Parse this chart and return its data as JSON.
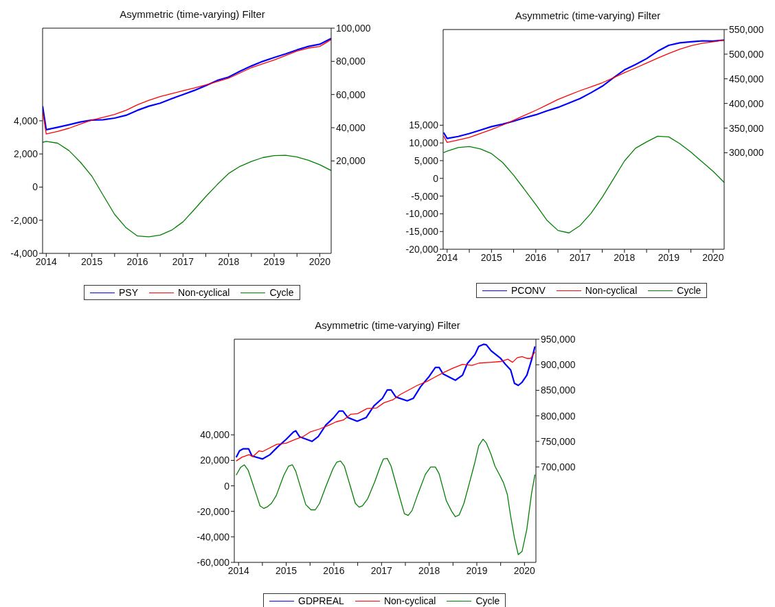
{
  "chart_data": [
    {
      "type": "line",
      "title": "Asymmetric (time-varying) Filter",
      "legend": "bottom",
      "xlim": [
        2014.42,
        2020.75
      ],
      "xticks": [
        {
          "value": 2014.5,
          "label": "2014"
        },
        {
          "value": 2015,
          "label": null
        },
        {
          "value": 2015.5,
          "label": "2015"
        },
        {
          "value": 2016,
          "label": null
        },
        {
          "value": 2016.5,
          "label": "2016"
        },
        {
          "value": 2017,
          "label": null
        },
        {
          "value": 2017.5,
          "label": "2017"
        },
        {
          "value": 2018,
          "label": null
        },
        {
          "value": 2018.5,
          "label": "2018"
        },
        {
          "value": 2019,
          "label": null
        },
        {
          "value": 2019.5,
          "label": "2019"
        },
        {
          "value": 2020,
          "label": null
        },
        {
          "value": 2020.5,
          "label": "2020"
        }
      ],
      "ylim": [
        -4000,
        9590
      ],
      "yticks": [
        {
          "value": -4000,
          "label": "-4,000"
        },
        {
          "value": -2000,
          "label": "-2,000"
        },
        {
          "value": 0,
          "label": "0"
        },
        {
          "value": 2000,
          "label": "2,000"
        },
        {
          "value": 4000,
          "label": "4,000"
        }
      ],
      "y2lim": [
        -35700,
        100000
      ],
      "y2ticks": [
        {
          "value": 20000,
          "label": "20,000"
        },
        {
          "value": 40000,
          "label": "40,000"
        },
        {
          "value": 60000,
          "label": "60,000"
        },
        {
          "value": 80000,
          "label": "80,000"
        },
        {
          "value": 100000,
          "label": "100,000"
        }
      ],
      "series": [
        {
          "name": "PSY",
          "color": "#0000ff",
          "axis": "y2",
          "x": [
            2014.42,
            2014.5,
            2014.75,
            2015,
            2015.25,
            2015.5,
            2015.75,
            2016,
            2016.25,
            2016.5,
            2016.75,
            2017,
            2017.25,
            2017.5,
            2017.75,
            2018,
            2018.25,
            2018.5,
            2018.75,
            2019,
            2019.25,
            2019.5,
            2019.75,
            2020,
            2020.25,
            2020.5,
            2020.75
          ],
          "values": [
            53000,
            38800,
            40300,
            41800,
            43500,
            44600,
            44800,
            45800,
            47500,
            50500,
            53000,
            54800,
            57500,
            60000,
            62500,
            65400,
            68500,
            70500,
            74000,
            77200,
            80000,
            82300,
            84500,
            86900,
            89000,
            90300,
            93800
          ]
        },
        {
          "name": "Non-cyclical",
          "color": "#ff0000",
          "axis": "y2",
          "x": [
            2014.42,
            2014.5,
            2014.75,
            2015,
            2015.25,
            2015.5,
            2015.75,
            2016,
            2016.25,
            2016.5,
            2016.75,
            2017,
            2017.25,
            2017.5,
            2017.75,
            2018,
            2018.25,
            2018.5,
            2018.75,
            2019,
            2019.25,
            2019.5,
            2019.75,
            2020,
            2020.25,
            2020.5,
            2020.75
          ],
          "values": [
            50000,
            36200,
            37800,
            39700,
            42200,
            44600,
            46300,
            48000,
            50500,
            53800,
            56500,
            58800,
            60500,
            62300,
            64000,
            65800,
            67800,
            69800,
            73000,
            76200,
            78500,
            80800,
            83500,
            86200,
            88000,
            89000,
            93100
          ]
        },
        {
          "name": "Cycle",
          "color": "#008000",
          "axis": "y",
          "x": [
            2014.42,
            2014.5,
            2014.75,
            2015,
            2015.25,
            2015.5,
            2015.75,
            2016,
            2016.25,
            2016.5,
            2016.75,
            2017,
            2017.25,
            2017.5,
            2017.75,
            2018,
            2018.25,
            2018.5,
            2018.75,
            2019,
            2019.25,
            2019.5,
            2019.75,
            2020,
            2020.25,
            2020.5,
            2020.75
          ],
          "values": [
            2700,
            2760,
            2650,
            2200,
            1500,
            660,
            -500,
            -1650,
            -2450,
            -2950,
            -3000,
            -2900,
            -2600,
            -2100,
            -1350,
            -570,
            150,
            820,
            1250,
            1550,
            1780,
            1900,
            1920,
            1820,
            1620,
            1350,
            1000
          ]
        }
      ]
    },
    {
      "type": "line",
      "title": "Asymmetric (time-varying) Filter",
      "legend": "bottom",
      "xlim": [
        2014.41,
        2020.75
      ],
      "xticks": [
        {
          "value": 2014.5,
          "label": "2014"
        },
        {
          "value": 2015,
          "label": null
        },
        {
          "value": 2015.5,
          "label": "2015"
        },
        {
          "value": 2016,
          "label": null
        },
        {
          "value": 2016.5,
          "label": "2016"
        },
        {
          "value": 2017,
          "label": null
        },
        {
          "value": 2017.5,
          "label": "2017"
        },
        {
          "value": 2018,
          "label": null
        },
        {
          "value": 2018.5,
          "label": "2018"
        },
        {
          "value": 2019,
          "label": null
        },
        {
          "value": 2019.5,
          "label": "2019"
        },
        {
          "value": 2020,
          "label": null
        },
        {
          "value": 2020.5,
          "label": "2020"
        }
      ],
      "ylim": [
        -20000,
        42000
      ],
      "yticks": [
        {
          "value": -20000,
          "label": "-20,000"
        },
        {
          "value": -15000,
          "label": "-15,000"
        },
        {
          "value": -10000,
          "label": "-10,000"
        },
        {
          "value": -5000,
          "label": "-5,000"
        },
        {
          "value": 0,
          "label": "0"
        },
        {
          "value": 5000,
          "label": "5,000"
        },
        {
          "value": 10000,
          "label": "10,000"
        },
        {
          "value": 15000,
          "label": "15,000"
        }
      ],
      "y2lim": [
        104200,
        550000
      ],
      "y2ticks": [
        {
          "value": 300000,
          "label": "300,000"
        },
        {
          "value": 350000,
          "label": "350,000"
        },
        {
          "value": 400000,
          "label": "400,000"
        },
        {
          "value": 450000,
          "label": "450,000"
        },
        {
          "value": 500000,
          "label": "500,000"
        },
        {
          "value": 550000,
          "label": "550,000"
        }
      ],
      "series": [
        {
          "name": "PCONV",
          "color": "#0000ff",
          "axis": "y2",
          "x": [
            2014.42,
            2014.5,
            2014.75,
            2015,
            2015.25,
            2015.5,
            2015.75,
            2016,
            2016.25,
            2016.5,
            2016.75,
            2017,
            2017.25,
            2017.5,
            2017.75,
            2018,
            2018.25,
            2018.5,
            2018.75,
            2019,
            2019.25,
            2019.5,
            2019.75,
            2020,
            2020.25,
            2020.5,
            2020.75
          ],
          "values": [
            341000,
            329000,
            333000,
            339000,
            346000,
            353000,
            358000,
            364000,
            371000,
            377000,
            385000,
            392000,
            401000,
            410000,
            422000,
            435000,
            452000,
            468000,
            479000,
            491000,
            506000,
            518000,
            523000,
            525000,
            527000,
            526500,
            528500
          ]
        },
        {
          "name": "Non-cyclical",
          "color": "#ff0000",
          "axis": "y2",
          "x": [
            2014.42,
            2014.5,
            2014.75,
            2015,
            2015.25,
            2015.5,
            2015.75,
            2016,
            2016.25,
            2016.5,
            2016.75,
            2017,
            2017.25,
            2017.5,
            2017.75,
            2018,
            2018.25,
            2018.5,
            2018.75,
            2019,
            2019.25,
            2019.5,
            2019.75,
            2020,
            2020.25,
            2020.5,
            2020.75
          ],
          "values": [
            334000,
            321000,
            326000,
            331000,
            339000,
            347000,
            356000,
            366000,
            376000,
            386000,
            397000,
            408000,
            417000,
            426000,
            434000,
            442000,
            452000,
            462500,
            472000,
            482000,
            492000,
            501500,
            510000,
            517000,
            522000,
            525000,
            528500
          ]
        },
        {
          "name": "Cycle",
          "color": "#008000",
          "axis": "y",
          "x": [
            2014.42,
            2014.5,
            2014.75,
            2015,
            2015.25,
            2015.5,
            2015.75,
            2016,
            2016.25,
            2016.5,
            2016.75,
            2017,
            2017.25,
            2017.5,
            2017.75,
            2018,
            2018.25,
            2018.5,
            2018.75,
            2019,
            2019.25,
            2019.5,
            2019.75,
            2020,
            2020.25,
            2020.5,
            2020.75
          ],
          "values": [
            7250,
            7700,
            8700,
            9000,
            8300,
            7000,
            4500,
            900,
            -3200,
            -7400,
            -11800,
            -14700,
            -15400,
            -13300,
            -9800,
            -5300,
            -200,
            4900,
            8500,
            10300,
            11900,
            11700,
            9800,
            7400,
            4700,
            2000,
            -1150
          ]
        }
      ]
    },
    {
      "type": "line",
      "title": "Asymmetric (time-varying) Filter",
      "legend": "bottom",
      "xlim": [
        2014.41,
        2020.74
      ],
      "xticks": [
        {
          "value": 2014.5,
          "label": "2014"
        },
        {
          "value": 2015,
          "label": null
        },
        {
          "value": 2015.5,
          "label": "2015"
        },
        {
          "value": 2016,
          "label": null
        },
        {
          "value": 2016.5,
          "label": "2016"
        },
        {
          "value": 2017,
          "label": null
        },
        {
          "value": 2017.5,
          "label": "2017"
        },
        {
          "value": 2018,
          "label": null
        },
        {
          "value": 2018.5,
          "label": "2018"
        },
        {
          "value": 2019,
          "label": null
        },
        {
          "value": 2019.5,
          "label": "2019"
        },
        {
          "value": 2020,
          "label": null
        },
        {
          "value": 2020.5,
          "label": "2020"
        }
      ],
      "ylim": [
        -60000,
        115000
      ],
      "yticks": [
        {
          "value": -60000,
          "label": "-60,000"
        },
        {
          "value": -40000,
          "label": "-40,000"
        },
        {
          "value": -20000,
          "label": "-20,000"
        },
        {
          "value": 0,
          "label": "0"
        },
        {
          "value": 20000,
          "label": "20,000"
        },
        {
          "value": 40000,
          "label": "40,000"
        }
      ],
      "y2lim": [
        513250,
        950000
      ],
      "y2ticks": [
        {
          "value": 700000,
          "label": "700,000"
        },
        {
          "value": 750000,
          "label": "750,000"
        },
        {
          "value": 800000,
          "label": "800,000"
        },
        {
          "value": 850000,
          "label": "850,000"
        },
        {
          "value": 900000,
          "label": "900,000"
        },
        {
          "value": 950000,
          "label": "950,000"
        }
      ],
      "series": [
        {
          "name": "GDPREAL",
          "color": "#0000ff",
          "axis": "y2",
          "x": [
            2014.45,
            2014.52,
            2014.6,
            2014.71,
            2014.78,
            2015.0,
            2015.16,
            2015.32,
            2015.5,
            2015.65,
            2015.7,
            2015.78,
            2016.04,
            2016.17,
            2016.33,
            2016.5,
            2016.61,
            2016.69,
            2016.79,
            2016.99,
            2017.18,
            2017.34,
            2017.52,
            2017.62,
            2017.7,
            2017.8,
            2018.04,
            2018.17,
            2018.32,
            2018.5,
            2018.63,
            2018.71,
            2018.79,
            2019.05,
            2019.2,
            2019.3,
            2019.46,
            2019.54,
            2019.64,
            2019.7,
            2019.8,
            2020.0,
            2020.11,
            2020.21,
            2020.29,
            2020.37,
            2020.45,
            2020.55,
            2020.65,
            2020.72
          ],
          "values": [
            719000,
            731600,
            735600,
            735600,
            721600,
            715600,
            724100,
            739200,
            754200,
            768300,
            770800,
            759200,
            750000,
            759200,
            781800,
            796900,
            809400,
            809400,
            796900,
            789400,
            796900,
            819500,
            834500,
            850600,
            850600,
            837000,
            829500,
            834500,
            857100,
            877200,
            894800,
            894800,
            882200,
            869700,
            879700,
            902300,
            919900,
            935900,
            940000,
            939000,
            927400,
            912400,
            899800,
            889800,
            863700,
            859600,
            865700,
            879700,
            909800,
            935900
          ]
        },
        {
          "name": "Non-cyclical",
          "color": "#ff0000",
          "axis": "y2",
          "x": [
            2014.45,
            2014.57,
            2014.72,
            2014.8,
            2014.93,
            2015.0,
            2015.3,
            2015.5,
            2015.7,
            2015.85,
            2016.0,
            2016.2,
            2016.4,
            2016.55,
            2016.7,
            2016.85,
            2017.0,
            2017.2,
            2017.4,
            2017.55,
            2017.75,
            2017.9,
            2018.05,
            2018.25,
            2018.45,
            2018.6,
            2018.8,
            2019.0,
            2019.2,
            2019.4,
            2019.55,
            2019.8,
            2020.0,
            2020.15,
            2020.25,
            2020.35,
            2020.45,
            2020.55,
            2020.63,
            2020.72
          ],
          "values": [
            711600,
            719000,
            724100,
            720100,
            731600,
            730000,
            744200,
            746700,
            754200,
            759200,
            768300,
            774300,
            781800,
            788400,
            791900,
            803000,
            804400,
            814500,
            815500,
            825500,
            832000,
            842100,
            849600,
            859600,
            867200,
            874700,
            884700,
            893300,
            900800,
            898800,
            903300,
            904800,
            906300,
            910800,
            904800,
            913900,
            915900,
            912400,
            912400,
            924900
          ]
        },
        {
          "name": "Cycle",
          "color": "#008000",
          "axis": "y",
          "x": [
            2014.45,
            2014.54,
            2014.62,
            2014.7,
            2014.88,
            2014.95,
            2015.03,
            2015.11,
            2015.19,
            2015.29,
            2015.45,
            2015.55,
            2015.63,
            2015.7,
            2015.91,
            2016.02,
            2016.11,
            2016.2,
            2016.33,
            2016.48,
            2016.56,
            2016.64,
            2016.72,
            2016.95,
            2017.03,
            2017.1,
            2017.21,
            2017.36,
            2017.47,
            2017.54,
            2017.62,
            2017.7,
            2017.88,
            2017.98,
            2018.06,
            2018.14,
            2018.27,
            2018.42,
            2018.53,
            2018.63,
            2018.71,
            2018.86,
            2018.97,
            2019.05,
            2019.13,
            2019.23,
            2019.36,
            2019.46,
            2019.54,
            2019.63,
            2019.7,
            2019.8,
            2019.88,
            2019.98,
            2020.06,
            2020.14,
            2020.21,
            2020.29,
            2020.37,
            2020.45,
            2020.55,
            2020.65,
            2020.72
          ],
          "values": [
            8400,
            14400,
            16500,
            12400,
            -7700,
            -15700,
            -17700,
            -16300,
            -13700,
            -7700,
            8400,
            15500,
            16500,
            11400,
            -14700,
            -18800,
            -18800,
            -13700,
            -600,
            13400,
            18500,
            19500,
            15500,
            -13700,
            -16700,
            -15700,
            -10100,
            3400,
            14800,
            21100,
            21500,
            15500,
            -8700,
            -21800,
            -23200,
            -19400,
            -5700,
            9000,
            14800,
            14800,
            9400,
            -11700,
            -19800,
            -24200,
            -22800,
            -13700,
            4400,
            18500,
            31500,
            36600,
            33600,
            24500,
            15500,
            8400,
            2400,
            -6700,
            -23800,
            -40900,
            -54000,
            -51400,
            -33900,
            -5700,
            8800
          ]
        }
      ]
    }
  ]
}
